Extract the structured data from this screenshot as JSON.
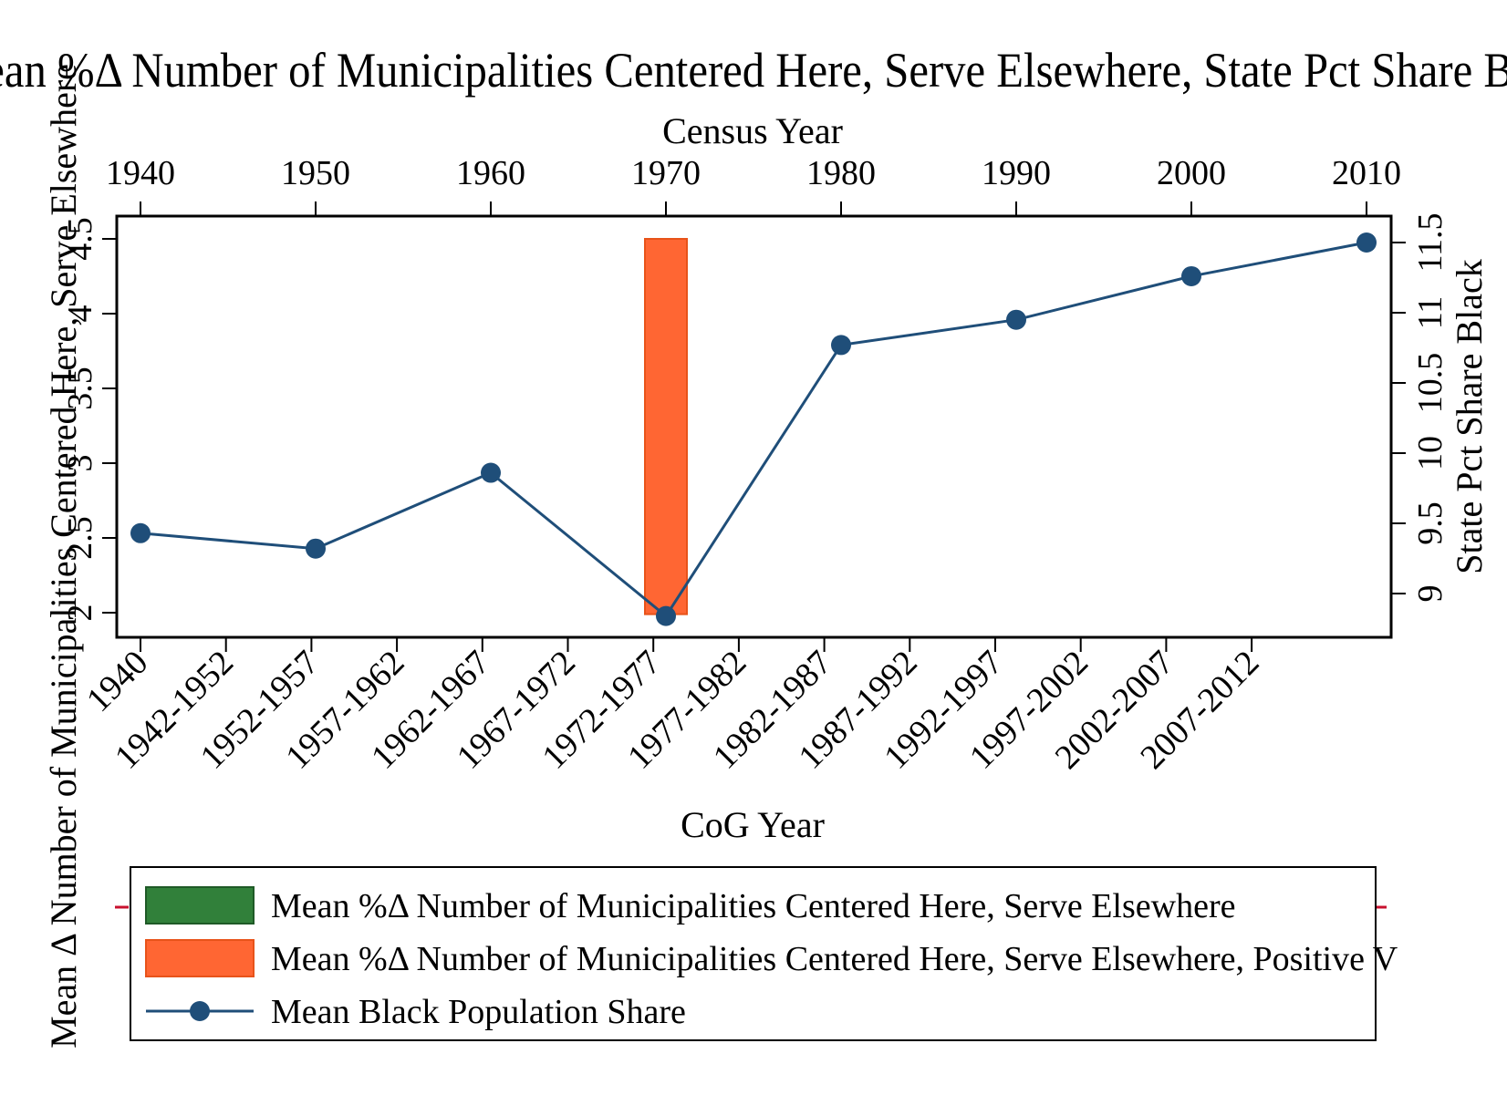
{
  "chart_data": {
    "type": "bar+line",
    "title": "Mean %Δ Number of Municipalities Centered Here, Serve Elsewhere, State Pct Share Black",
    "x_top": {
      "label": "Census Year",
      "ticks": [
        "1940",
        "1950",
        "1960",
        "1970",
        "1980",
        "1990",
        "2000",
        "2010"
      ]
    },
    "x_bottom": {
      "label": "CoG Year",
      "ticks": [
        "1940",
        "1942-1952",
        "1952-1957",
        "1957-1962",
        "1962-1967",
        "1967-1972",
        "1972-1977",
        "1977-1982",
        "1982-1987",
        "1987-1992",
        "1992-1997",
        "1997-2002",
        "2002-2007",
        "2007-2012"
      ]
    },
    "y_left": {
      "label": "Mean Δ Number of Municipalities Centered Here, Serve Elsewhere",
      "ticks": [
        "2",
        "2.5",
        "3",
        "3.5",
        "4",
        "4.5"
      ],
      "ylim": [
        1.83,
        4.65
      ]
    },
    "y_right": {
      "label": "State Pct Share Black",
      "ticks": [
        "9",
        "9.5",
        "10",
        "10.5",
        "11",
        "11.5"
      ],
      "ylim": [
        8.77,
        11.75
      ]
    },
    "bars": [
      {
        "x": 1970,
        "y0": 1.99,
        "y1": 4.5,
        "series": "positive"
      }
    ],
    "line": {
      "name": "Mean Black Population Share",
      "points": [
        {
          "x": 1940,
          "y": 9.43
        },
        {
          "x": 1950,
          "y": 9.32
        },
        {
          "x": 1960,
          "y": 9.86
        },
        {
          "x": 1970,
          "y": 8.84
        },
        {
          "x": 1980,
          "y": 10.77
        },
        {
          "x": 1990,
          "y": 10.95
        },
        {
          "x": 2000,
          "y": 11.26
        },
        {
          "x": 2010,
          "y": 11.5
        }
      ]
    },
    "legend": [
      {
        "label": "Mean %Δ Number of Municipalities Centered Here, Serve Elsewhere",
        "type": "bar",
        "color": "#31803a"
      },
      {
        "label": "Mean %Δ Number of Municipalities Centered Here, Serve Elsewhere, Positive V",
        "type": "bar",
        "color": "#ff6633"
      },
      {
        "label": "Mean Black Population Share",
        "type": "line",
        "color": "#1f4e79"
      }
    ],
    "colors": {
      "bar_negative": "#31803a",
      "bar_positive": "#ff6633",
      "bar_positive_edge": "#e8531a",
      "line": "#1f4e79",
      "accent_dash": "#c8102e"
    }
  }
}
